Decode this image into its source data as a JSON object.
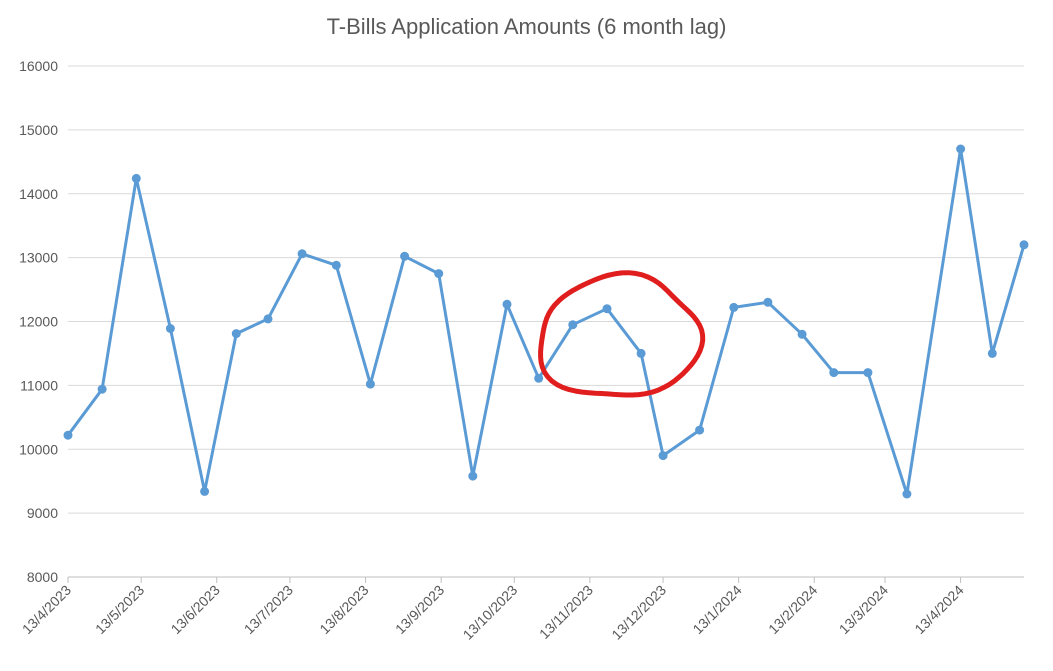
{
  "chart_data": {
    "type": "line",
    "title": "T-Bills Application Amounts (6 month lag)",
    "xlabel": "",
    "ylabel": "",
    "ylim": [
      8000,
      16000
    ],
    "yticks": [
      8000,
      9000,
      10000,
      11000,
      12000,
      13000,
      14000,
      15000,
      16000
    ],
    "xlim": [
      "2023-04-13",
      "2024-05-09"
    ],
    "xticks": [
      {
        "date": "2023-04-13",
        "label": "13/4/2023"
      },
      {
        "date": "2023-05-13",
        "label": "13/5/2023"
      },
      {
        "date": "2023-06-13",
        "label": "13/6/2023"
      },
      {
        "date": "2023-07-13",
        "label": "13/7/2023"
      },
      {
        "date": "2023-08-13",
        "label": "13/8/2023"
      },
      {
        "date": "2023-09-13",
        "label": "13/9/2023"
      },
      {
        "date": "2023-10-13",
        "label": "13/10/2023"
      },
      {
        "date": "2023-11-13",
        "label": "13/11/2023"
      },
      {
        "date": "2023-12-13",
        "label": "13/12/2023"
      },
      {
        "date": "2024-01-13",
        "label": "13/1/2024"
      },
      {
        "date": "2024-02-13",
        "label": "13/2/2024"
      },
      {
        "date": "2024-03-13",
        "label": "13/3/2024"
      },
      {
        "date": "2024-04-13",
        "label": "13/4/2024"
      }
    ],
    "grid": true,
    "series": [
      {
        "color": "#5b9bd5",
        "points": [
          {
            "x": "2023-04-13",
            "y": 10220
          },
          {
            "x": "2023-04-27",
            "y": 10940
          },
          {
            "x": "2023-05-11",
            "y": 14240
          },
          {
            "x": "2023-05-25",
            "y": 11890
          },
          {
            "x": "2023-06-08",
            "y": 9340
          },
          {
            "x": "2023-06-21",
            "y": 11810
          },
          {
            "x": "2023-07-04",
            "y": 12040
          },
          {
            "x": "2023-07-18",
            "y": 13060
          },
          {
            "x": "2023-08-01",
            "y": 12880
          },
          {
            "x": "2023-08-15",
            "y": 11020
          },
          {
            "x": "2023-08-29",
            "y": 13020
          },
          {
            "x": "2023-09-12",
            "y": 12750
          },
          {
            "x": "2023-09-26",
            "y": 9580
          },
          {
            "x": "2023-10-10",
            "y": 12270
          },
          {
            "x": "2023-10-23",
            "y": 11110
          },
          {
            "x": "2023-11-06",
            "y": 11950
          },
          {
            "x": "2023-11-20",
            "y": 12200
          },
          {
            "x": "2023-12-04",
            "y": 11500
          },
          {
            "x": "2023-12-13",
            "y": 9900
          },
          {
            "x": "2023-12-28",
            "y": 10300
          },
          {
            "x": "2024-01-11",
            "y": 12220
          },
          {
            "x": "2024-01-25",
            "y": 12300
          },
          {
            "x": "2024-02-08",
            "y": 11800
          },
          {
            "x": "2024-02-21",
            "y": 11200
          },
          {
            "x": "2024-03-06",
            "y": 11200
          },
          {
            "x": "2024-03-22",
            "y": 9300
          },
          {
            "x": "2024-04-13",
            "y": 14700
          },
          {
            "x": "2024-04-26",
            "y": 11500
          },
          {
            "x": "2024-05-09",
            "y": 13200
          }
        ]
      }
    ],
    "annotations": [
      {
        "type": "freehand-circle",
        "color": "#e01e1e",
        "x_range": [
          "2023-10-23",
          "2023-12-28"
        ],
        "y_range": [
          10800,
          12700
        ]
      }
    ]
  }
}
